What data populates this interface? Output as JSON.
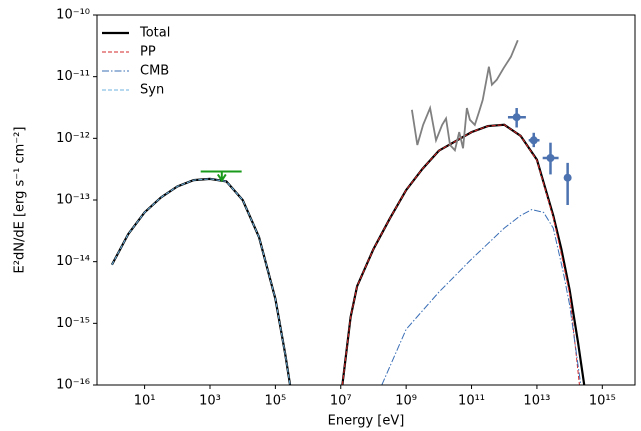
{
  "chart_data": {
    "type": "line",
    "xlabel": "Energy [eV]",
    "ylabel": "E²dN/dE [erg s⁻¹ cm⁻²]",
    "xscale": "log",
    "yscale": "log",
    "xlim": [
      0.35,
      1e+16
    ],
    "ylim": [
      1e-16,
      1e-10
    ],
    "xticks": [
      {
        "value": 10,
        "label": "10¹"
      },
      {
        "value": 1000,
        "label": "10³"
      },
      {
        "value": 100000,
        "label": "10⁵"
      },
      {
        "value": 10000000,
        "label": "10⁷"
      },
      {
        "value": 1000000000,
        "label": "10⁹"
      },
      {
        "value": 100000000000.0,
        "label": "10¹¹"
      },
      {
        "value": 10000000000000.0,
        "label": "10¹³"
      },
      {
        "value": 1000000000000000.0,
        "label": "10¹⁵"
      }
    ],
    "yticks": [
      {
        "value": 1e-16,
        "label": "10⁻¹⁶"
      },
      {
        "value": 1e-15,
        "label": "10⁻¹⁵"
      },
      {
        "value": 1e-14,
        "label": "10⁻¹⁴"
      },
      {
        "value": 1e-13,
        "label": "10⁻¹³"
      },
      {
        "value": 1e-12,
        "label": "10⁻¹²"
      },
      {
        "value": 1e-11,
        "label": "10⁻¹¹"
      },
      {
        "value": 1e-10,
        "label": "10⁻¹⁰"
      }
    ],
    "legend": "upper left",
    "series": [
      {
        "name": "Total",
        "color": "#000000",
        "linestyle": "solid",
        "linewidth": 2.2,
        "x": [
          1,
          3.162,
          10,
          31.62,
          100,
          316.2,
          1000,
          3162,
          10000,
          31620,
          100000,
          199500,
          281800,
          null,
          11200000,
          20000000,
          31620000,
          100000000,
          316200000,
          1000000000,
          3162000000,
          10000000000,
          100000000000.0,
          316200000000.0,
          1000000000000.0,
          3162000000000.0,
          10000000000000.0,
          31620000000000.0,
          56000000000000.0,
          100000000000000.0,
          180000000000000.0,
          280000000000000.0
        ],
        "values": [
          8.9e-15,
          2.8e-14,
          6.3e-14,
          1.1e-13,
          1.66e-13,
          2.1e-13,
          2.2e-13,
          2e-13,
          1e-13,
          2.5e-14,
          2.5e-15,
          3.2e-16,
          1e-16,
          null,
          1e-16,
          1.26e-15,
          4e-15,
          1.6e-14,
          5e-14,
          1.45e-13,
          3.2e-13,
          6.3e-13,
          1.26e-12,
          1.58e-12,
          1.66e-12,
          1.1e-12,
          4.5e-13,
          5.6e-14,
          1.6e-14,
          3.5e-15,
          5e-16,
          1e-16
        ]
      },
      {
        "name": "PP",
        "color": "#d62728",
        "linestyle": "dashed",
        "linewidth": 1,
        "x": [
          11200000,
          20000000,
          31620000,
          100000000,
          316200000,
          1000000000,
          3162000000,
          10000000000,
          100000000000.0,
          316200000000.0,
          1000000000000.0,
          3162000000000.0,
          10000000000000.0,
          31620000000000.0,
          56000000000000.0,
          100000000000000.0,
          160000000000000.0,
          200000000000000.0
        ],
        "values": [
          1e-16,
          1.26e-15,
          4e-15,
          1.6e-14,
          5e-14,
          1.45e-13,
          3.2e-13,
          6.3e-13,
          1.26e-12,
          1.58e-12,
          1.66e-12,
          1.1e-12,
          4.4e-13,
          5.2e-14,
          1.3e-14,
          3e-15,
          3e-16,
          1e-16
        ]
      },
      {
        "name": "CMB",
        "color": "#3b6fb6",
        "linestyle": "dashdot",
        "linewidth": 1,
        "x": [
          180000000,
          1000000000,
          10000000000,
          100000000000.0,
          1000000000000.0,
          3162000000000.0,
          7000000000000.0,
          16000000000000.0,
          31620000000000.0,
          63000000000000.0,
          100000000000000.0,
          220000000000000.0
        ],
        "values": [
          1e-16,
          8e-16,
          3.2e-15,
          1.1e-14,
          3.5e-14,
          5.6e-14,
          7e-14,
          6.3e-14,
          3.5e-14,
          7e-15,
          2e-15,
          1e-16
        ]
      },
      {
        "name": "Syn",
        "color": "#6fb3e0",
        "linestyle": "dashed",
        "linewidth": 1,
        "x": [
          1,
          3.162,
          10,
          31.62,
          100,
          316.2,
          1000,
          3162,
          10000,
          31620,
          100000,
          199500,
          281800
        ],
        "values": [
          8.9e-15,
          2.8e-14,
          6.3e-14,
          1.1e-13,
          1.66e-13,
          2.1e-13,
          2.2e-13,
          2e-13,
          1e-13,
          2.5e-14,
          2.5e-15,
          3.2e-16,
          1e-16
        ]
      },
      {
        "color": "#808080",
        "linestyle": "solid",
        "linewidth": 1.8,
        "x": [
          1500000000,
          2200000000,
          3300000000,
          5400000000,
          8200000000,
          12600000000,
          16600000000,
          22000000000,
          31000000000,
          42000000000,
          55000000000,
          72000000000,
          89000000000,
          126000000000.0,
          170000000000.0,
          220000000000.0,
          340000000000.0,
          420000000000.0,
          590000000000.0,
          960000000000.0,
          1600000000000.0,
          2600000000000.0
        ],
        "values": [
          2.9e-12,
          7.8e-13,
          1.65e-12,
          3.1e-12,
          9.3e-13,
          1.65e-12,
          2.1e-12,
          7.8e-13,
          6.4e-13,
          1.26e-12,
          6.9e-13,
          3.1e-12,
          2e-12,
          1.65e-12,
          2.7e-12,
          4.2e-12,
          1.45e-11,
          7.4e-12,
          8.9e-12,
          1.38e-11,
          2.1e-11,
          3.9e-11
        ]
      }
    ],
    "points": {
      "color": "#4c72b0",
      "x": [
        2400000000000.0,
        8000000000000.0,
        26000000000000.0,
        87000000000000.0
      ],
      "x_low": [
        1300000000000.0,
        5600000000000.0,
        15000000000000.0,
        78000000000000.0
      ],
      "x_high": [
        4600000000000.0,
        12000000000000.0,
        46000000000000.0,
        99000000000000.0
      ],
      "y": [
        2.2e-12,
        9.3e-13,
        4.8e-13,
        2.3e-13
      ],
      "y_low": [
        1.5e-12,
        7.2e-13,
        2.6e-13,
        8.3e-14
      ],
      "y_high": [
        3.1e-12,
        1.23e-12,
        8.5e-13,
        4e-13
      ]
    },
    "upper_limit": {
      "color": "#1a9a1a",
      "x": 2300,
      "x_low": 520,
      "x_high": 9300,
      "y": 2.9e-13
    }
  }
}
